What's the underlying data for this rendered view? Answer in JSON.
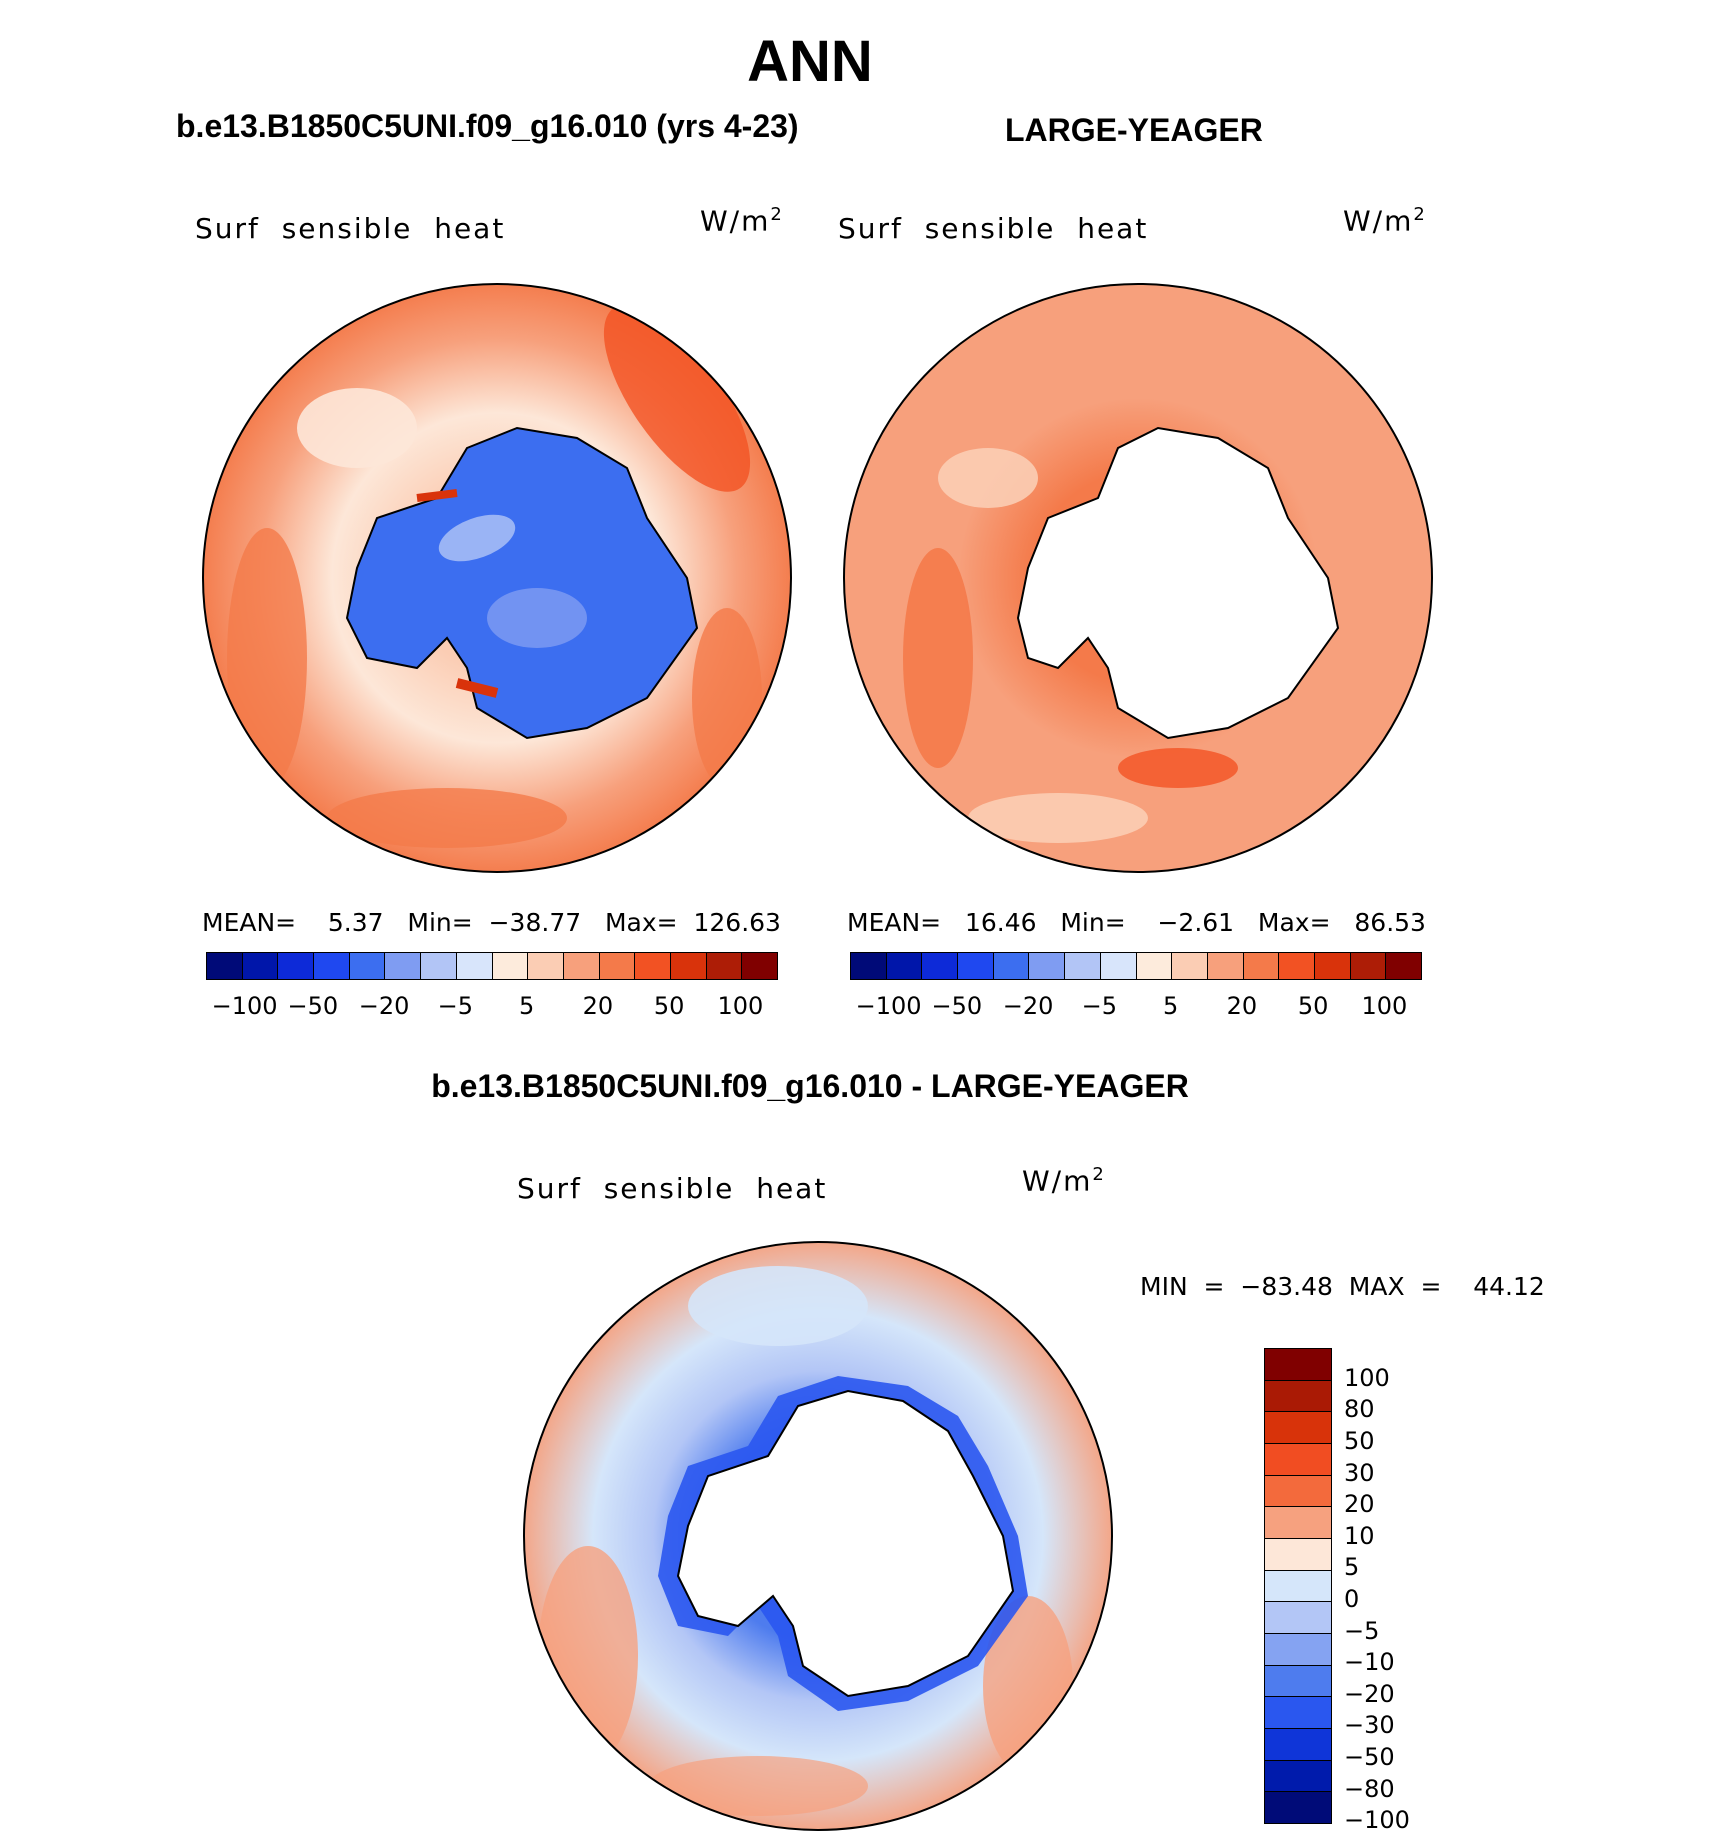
{
  "figure": {
    "title": "ANN",
    "case1_title": "b.e13.B1850C5UNI.f09_g16.010 (yrs 4-23)",
    "case2_title": "LARGE-YEAGER",
    "diff_title": "b.e13.B1850C5UNI.f09_g16.010 - LARGE-YEAGER"
  },
  "panels": [
    {
      "variable": "Surf  sensible  heat",
      "units": "W/m",
      "units_sup": "2",
      "stats": "MEAN=    5.37   Min=  −38.77   Max=  126.63",
      "colorbar_ticks": [
        "−100",
        "−50",
        "−20",
        "−5",
        "5",
        "20",
        "50",
        "100"
      ]
    },
    {
      "variable": "Surf  sensible  heat",
      "units": "W/m",
      "units_sup": "2",
      "stats": "MEAN=   16.46   Min=    −2.61   Max=   86.53",
      "colorbar_ticks": [
        "−100",
        "−50",
        "−20",
        "−5",
        "5",
        "20",
        "50",
        "100"
      ]
    },
    {
      "variable": "Surf  sensible  heat",
      "units": "W/m",
      "units_sup": "2",
      "stats": "MIN  =  −83.48  MAX  =    44.12",
      "colorbar_ticks": [
        "100",
        "80",
        "50",
        "30",
        "20",
        "10",
        "5",
        "0",
        "−5",
        "−10",
        "−20",
        "−30",
        "−50",
        "−80",
        "−100"
      ]
    }
  ],
  "colors": {
    "field_palette": [
      "#000a78",
      "#0016aa",
      "#0d2ad8",
      "#1f48f0",
      "#3c6ef0",
      "#7f9cf2",
      "#b2c5f6",
      "#d8e5fb",
      "#fdebdc",
      "#fbcdb4",
      "#f7a07c",
      "#f47a4a",
      "#f25223",
      "#d9330b",
      "#ad1d06",
      "#800000"
    ],
    "diff_palette": [
      "#800000",
      "#aa1a05",
      "#d8330a",
      "#f14d22",
      "#f36a3c",
      "#f6a17f",
      "#fde7d8",
      "#d5e6fa",
      "#b3c6f6",
      "#85a3f2",
      "#4e7cee",
      "#2a57ef",
      "#0f35d8",
      "#001bac",
      "#000b78"
    ],
    "land_white": "#ffffff",
    "coastline": "#000000"
  }
}
